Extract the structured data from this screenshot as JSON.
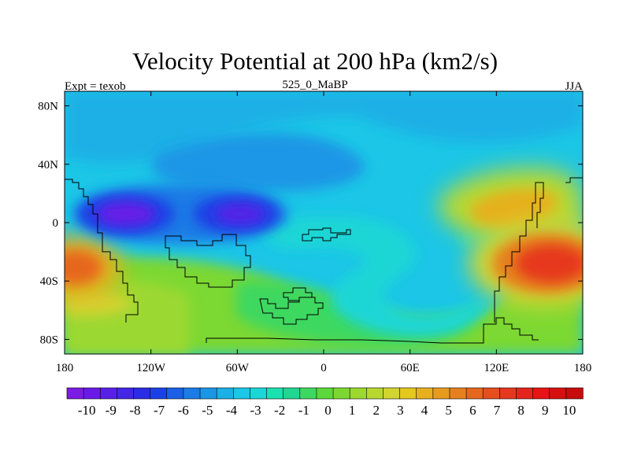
{
  "title": "Velocity Potential at 200 hPa (km2/s)",
  "left_label": "Expt = texob",
  "center_label": "525_0_MaBP",
  "right_label": "JJA",
  "chart_data": {
    "type": "heatmap",
    "projection": "cylindrical-equidistant",
    "xlim": [
      -180,
      180
    ],
    "ylim": [
      -90,
      90
    ],
    "x_ticks": [
      {
        "value": -180,
        "label": "180"
      },
      {
        "value": -120,
        "label": "120W"
      },
      {
        "value": -60,
        "label": "60W"
      },
      {
        "value": 0,
        "label": "0"
      },
      {
        "value": 60,
        "label": "60E"
      },
      {
        "value": 120,
        "label": "120E"
      },
      {
        "value": 180,
        "label": "180"
      }
    ],
    "y_ticks": [
      {
        "value": 80,
        "label": "80N"
      },
      {
        "value": 40,
        "label": "40N"
      },
      {
        "value": 0,
        "label": "0"
      },
      {
        "value": -40,
        "label": "40S"
      },
      {
        "value": -80,
        "label": "80S"
      }
    ],
    "colorbar": {
      "labels": [
        "-10",
        "-9",
        "-8",
        "-7",
        "-6",
        "-5",
        "-4",
        "-3",
        "-2",
        "-1",
        "0",
        "1",
        "2",
        "3",
        "4",
        "5",
        "6",
        "7",
        "8",
        "9",
        "10"
      ],
      "colors": [
        "#7b1be3",
        "#6a1ae6",
        "#5820e6",
        "#4426e6",
        "#2b2ce6",
        "#1b41e6",
        "#1b5fe6",
        "#1b7ce6",
        "#1b96e6",
        "#1bb0e6",
        "#1bc6e6",
        "#1bd6d6",
        "#1be0b0",
        "#20d690",
        "#3ed860",
        "#5cd83a",
        "#7cd830",
        "#9cd830",
        "#b8d830",
        "#d2d430",
        "#e4c81e",
        "#e6b01e",
        "#e69a1e",
        "#e6801e",
        "#e6661e",
        "#e64e1e",
        "#e6381e",
        "#e6241e",
        "#e61414",
        "#d61010",
        "#c80c0c"
      ]
    },
    "field_centers": [
      {
        "lon": -150,
        "lat": 8,
        "value": -7,
        "label": "negative center over eastern Pacific"
      },
      {
        "lon": -80,
        "lat": 8,
        "value": -6.5,
        "label": "negative center over South America"
      },
      {
        "lon": 155,
        "lat": -25,
        "value": 9,
        "label": "positive center over western Pacific / Australia"
      },
      {
        "lon": -175,
        "lat": -25,
        "value": 8,
        "label": "positive center over central Pacific"
      },
      {
        "lon": 115,
        "lat": 15,
        "value": 6,
        "label": "positive region over South Asia"
      }
    ],
    "overlay": "continental outlines"
  }
}
